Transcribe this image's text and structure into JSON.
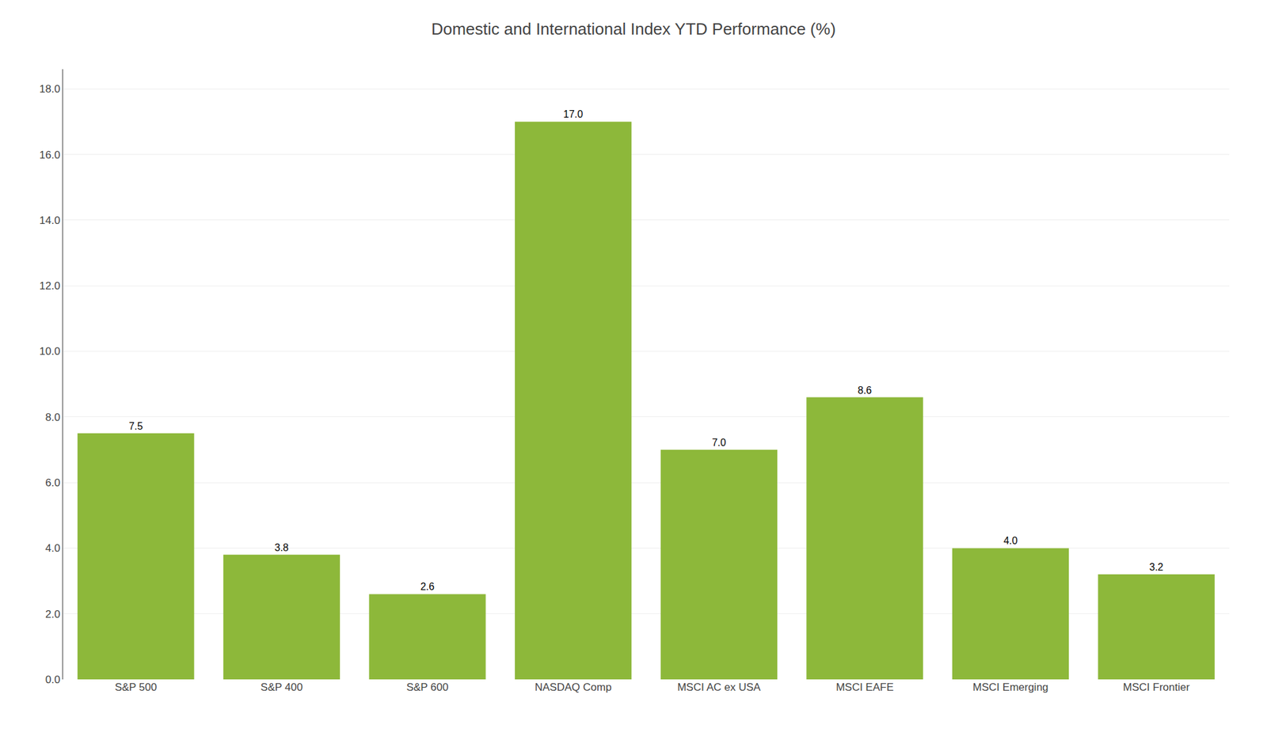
{
  "chart_data": {
    "type": "bar",
    "title": "Domestic and International Index YTD Performance (%)",
    "categories": [
      "S&P 500",
      "S&P 400",
      "S&P 600",
      "NASDAQ Comp",
      "MSCI AC ex USA",
      "MSCI EAFE",
      "MSCI Emerging",
      "MSCI Frontier"
    ],
    "values": [
      7.5,
      3.8,
      2.6,
      17.0,
      7.0,
      8.6,
      4.0,
      3.2
    ],
    "value_labels": [
      "7.5",
      "3.8",
      "2.6",
      "17.0",
      "7.0",
      "8.6",
      "4.0",
      "3.2"
    ],
    "data_labels": true,
    "color": "#8DB83A",
    "ylim": [
      0,
      18.6
    ],
    "yticks": [
      {
        "value": 0.0,
        "label": "0.0"
      },
      {
        "value": 2.0,
        "label": "2.0"
      },
      {
        "value": 4.0,
        "label": "4.0"
      },
      {
        "value": 6.0,
        "label": "6.0"
      },
      {
        "value": 8.0,
        "label": "8.0"
      },
      {
        "value": 10.0,
        "label": "10.0"
      },
      {
        "value": 12.0,
        "label": "12.0"
      },
      {
        "value": 14.0,
        "label": "14.0"
      },
      {
        "value": 16.0,
        "label": "16.0"
      },
      {
        "value": 18.0,
        "label": "18.0"
      }
    ],
    "grid": true
  }
}
